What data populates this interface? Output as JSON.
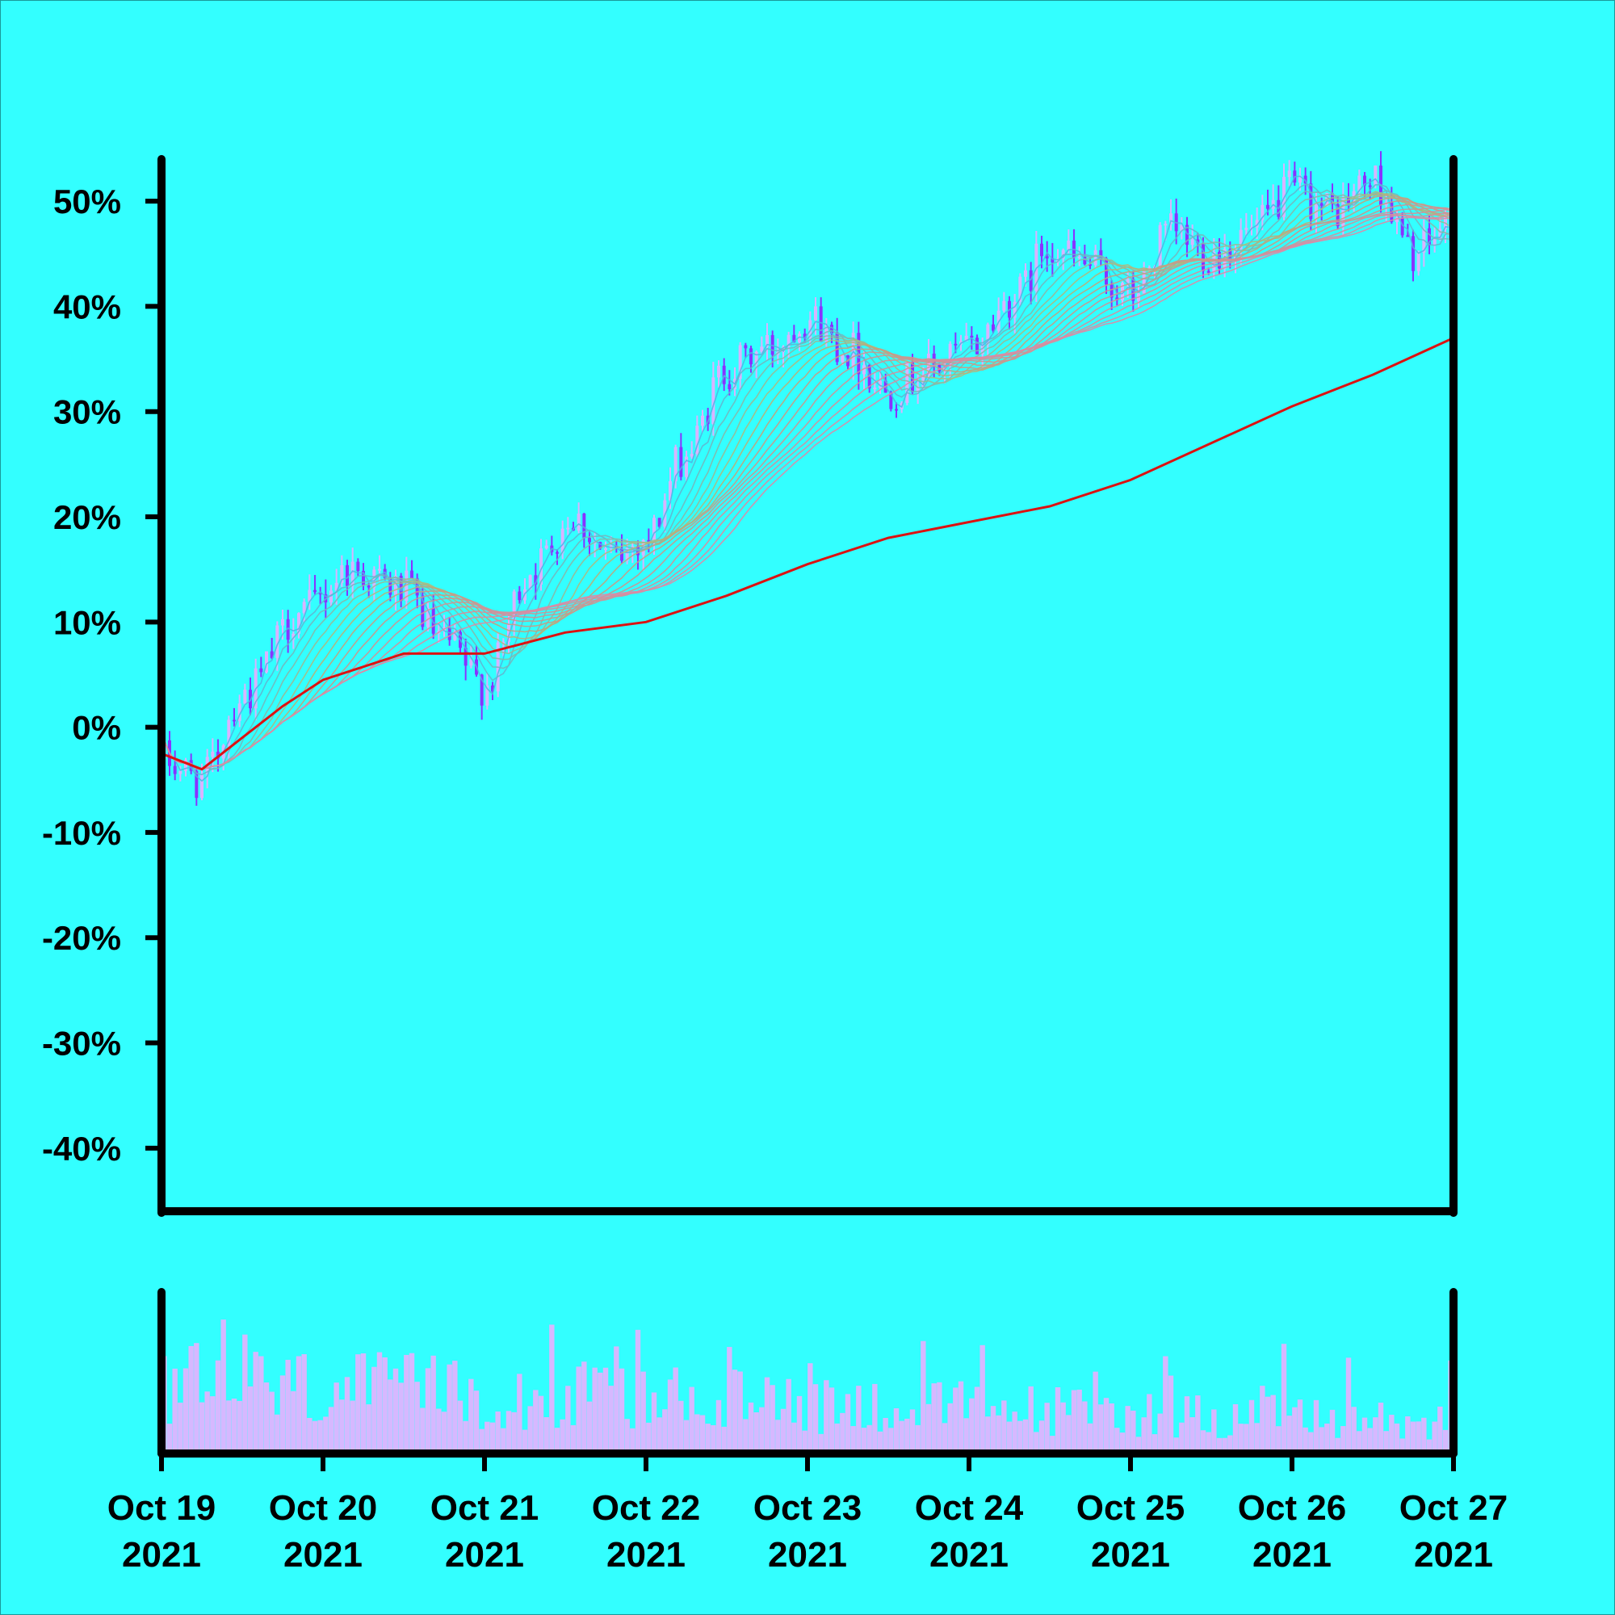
{
  "chart_data": [
    {
      "type": "candlestick",
      "title": "",
      "xlabel": "",
      "ylabel": "",
      "yunit": "%",
      "ylim": [
        -46,
        54
      ],
      "ytick_values": [
        -40,
        -30,
        -20,
        -10,
        0,
        10,
        20,
        30,
        40,
        50
      ],
      "ytick_labels": [
        "-40%",
        "-30%",
        "-20%",
        "-10%",
        "0%",
        "10%",
        "20%",
        "30%",
        "40%",
        "50%"
      ],
      "grid": false,
      "xlim": [
        "2021-10-19",
        "2021-10-27"
      ],
      "xtick_dates": [
        "2021-10-19",
        "2021-10-20",
        "2021-10-21",
        "2021-10-22",
        "2021-10-23",
        "2021-10-24",
        "2021-10-25",
        "2021-10-26",
        "2021-10-27"
      ],
      "xtick_labels": [
        [
          "Oct 19",
          "2021"
        ],
        [
          "Oct 20",
          "2021"
        ],
        [
          "Oct 21",
          "2021"
        ],
        [
          "Oct 22",
          "2021"
        ],
        [
          "Oct 23",
          "2021"
        ],
        [
          "Oct 24",
          "2021"
        ],
        [
          "Oct 25",
          "2021"
        ],
        [
          "Oct 26",
          "2021"
        ],
        [
          "Oct 27",
          "2021"
        ]
      ],
      "price_path": {
        "x": [
          "2021-10-19T00:00",
          "2021-10-19T06:00",
          "2021-10-19T12:00",
          "2021-10-19T21:00",
          "2021-10-20T04:00",
          "2021-10-20T12:00",
          "2021-10-20T18:00",
          "2021-10-21T00:00",
          "2021-10-21T07:00",
          "2021-10-21T13:00",
          "2021-10-21T19:00",
          "2021-10-22T00:00",
          "2021-10-22T06:00",
          "2021-10-22T12:00",
          "2021-10-22T18:00",
          "2021-10-23T00:00",
          "2021-10-23T06:00",
          "2021-10-23T12:00",
          "2021-10-23T18:00",
          "2021-10-24T00:00",
          "2021-10-24T07:00",
          "2021-10-24T12:00",
          "2021-10-24T17:00",
          "2021-10-25T00:00",
          "2021-10-25T06:00",
          "2021-10-25T12:00",
          "2021-10-25T18:00",
          "2021-10-26T00:00",
          "2021-10-26T06:00",
          "2021-10-26T12:00",
          "2021-10-26T18:00",
          "2021-10-27T00:00"
        ],
        "y": [
          -3,
          -5,
          3,
          11,
          15,
          13,
          8,
          4,
          15,
          20,
          16,
          18,
          26,
          34,
          36,
          39,
          36,
          32,
          34,
          36,
          41,
          46,
          44,
          41,
          47,
          45,
          47,
          51,
          49,
          52,
          45,
          48
        ]
      },
      "series": [
        {
          "name": "",
          "type": "line",
          "color": "#dd1111",
          "x": [
            "2021-10-19",
            "2021-10-19T06:00",
            "2021-10-19T12:00",
            "2021-10-19T18:00",
            "2021-10-20",
            "2021-10-20T12:00",
            "2021-10-21",
            "2021-10-21T12:00",
            "2021-10-22",
            "2021-10-22T12:00",
            "2021-10-23",
            "2021-10-23T12:00",
            "2021-10-24",
            "2021-10-24T12:00",
            "2021-10-25",
            "2021-10-25T12:00",
            "2021-10-26",
            "2021-10-26T12:00",
            "2021-10-27"
          ],
          "y": [
            -2.5,
            -4,
            -1,
            2,
            4.5,
            7,
            7,
            9,
            10,
            12.5,
            15.5,
            18,
            19.5,
            21,
            23.5,
            27,
            30.5,
            33.5,
            37
          ]
        }
      ],
      "ribbon": {
        "type": "moving-average-ribbon",
        "line_count": 16,
        "colors": [
          "#4cb6e6",
          "#5fb7d2",
          "#72b8be",
          "#85b9aa",
          "#98ba96",
          "#abbb82",
          "#b6b37a",
          "#bfa57e",
          "#c69c86",
          "#c9988c",
          "#cc9592",
          "#ce9397",
          "#d0919b",
          "#d48f9f",
          "#d88da3",
          "#dc8ba6"
        ],
        "convergence_color": "#ff4040"
      },
      "candle_colors": {
        "up": "#d9b3ff",
        "down": "#8833ff"
      },
      "volume": {
        "color": "#d6b8ff",
        "ylim": [
          0,
          1
        ]
      }
    }
  ]
}
